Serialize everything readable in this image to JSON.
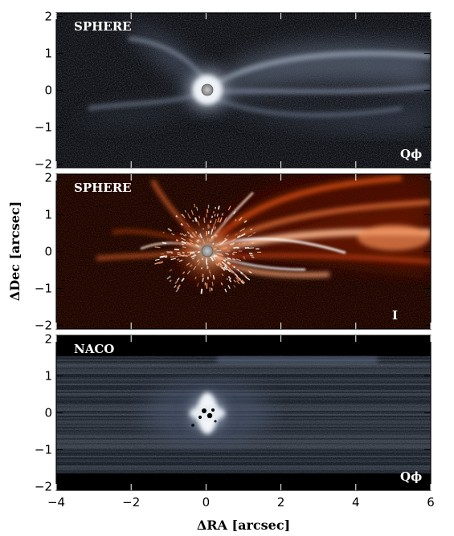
{
  "panels": [
    {
      "id": "sphere-qphi",
      "label": "SPHERE",
      "corner_label": "Qϕ",
      "colormap": "bone"
    },
    {
      "id": "sphere-i",
      "label": "SPHERE",
      "corner_label": "I",
      "colormap": "red-hot"
    },
    {
      "id": "naco-qphi",
      "label": "NACO",
      "corner_label": "Qϕ",
      "colormap": "bone"
    }
  ],
  "axes": {
    "xlabel": "ΔRA [arcsec]",
    "ylabel": "ΔDec [arcsec]",
    "xlim": [
      -4,
      6
    ],
    "ylim": [
      -2.1,
      2.1
    ],
    "x_ticks": [
      -4,
      -2,
      0,
      2,
      4,
      6
    ],
    "x_tick_labels": [
      "−4",
      "−2",
      "0",
      "2",
      "4",
      "6"
    ],
    "y_ticks": [
      -2,
      -1,
      0,
      1,
      2
    ],
    "y_tick_labels": [
      "−2",
      "−1",
      "0",
      "1",
      "2"
    ]
  },
  "star_position": [
    0,
    0
  ],
  "colors": {
    "background": "#ffffff",
    "axes": "#000000",
    "label": "#ffffff",
    "qphi_colormap": [
      "#000000",
      "#1d2230",
      "#4a5266",
      "#8f9bb0",
      "#dbe3ec",
      "#ffffff"
    ],
    "i_colormap": [
      "#000000",
      "#3b0700",
      "#8a1c02",
      "#d3541a",
      "#f5a271",
      "#ffffff"
    ]
  }
}
